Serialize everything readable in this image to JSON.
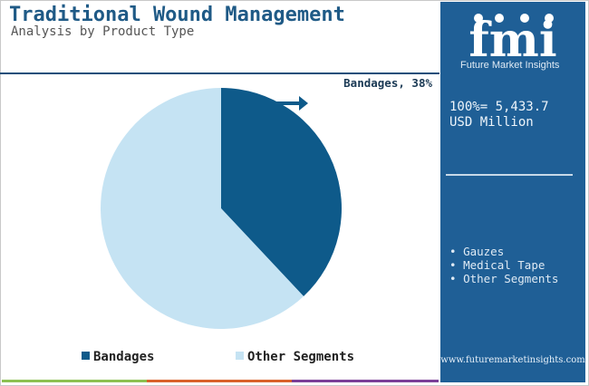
{
  "header": {
    "title": "Traditional Wound Management",
    "subtitle": "Analysis by Product Type"
  },
  "chart_data": {
    "type": "pie",
    "title": "",
    "slices": [
      {
        "name": "Bandages",
        "value": 38,
        "color": "#0e5a8a"
      },
      {
        "name": "Other Segments",
        "value": 62,
        "color": "#c5e3f3"
      }
    ],
    "data_labels": [
      {
        "series": "Bandages",
        "text": "Bandages, 38%"
      }
    ],
    "legend": {
      "position": "bottom",
      "items": [
        {
          "label": "Bandages",
          "color": "#0e5a8a"
        },
        {
          "label": "Other Segments",
          "color": "#c5e3f3"
        }
      ]
    }
  },
  "sidebar": {
    "logo_letters": "fmi",
    "logo_caption": "Future Market Insights",
    "total_line1": "100%= 5,433.7",
    "total_line2": "USD Million",
    "other_segments": [
      "Gauzes",
      "Medical Tape",
      "Other Segments"
    ],
    "url": "www.futuremarketinsights.com"
  },
  "colors": {
    "title": "#1f5a86",
    "panel": "#1f5f96",
    "accent_arrow": "#0e5a8a",
    "stripes": [
      "#8cc152",
      "#d9622b",
      "#7b3f98",
      "#1f5f96"
    ]
  }
}
